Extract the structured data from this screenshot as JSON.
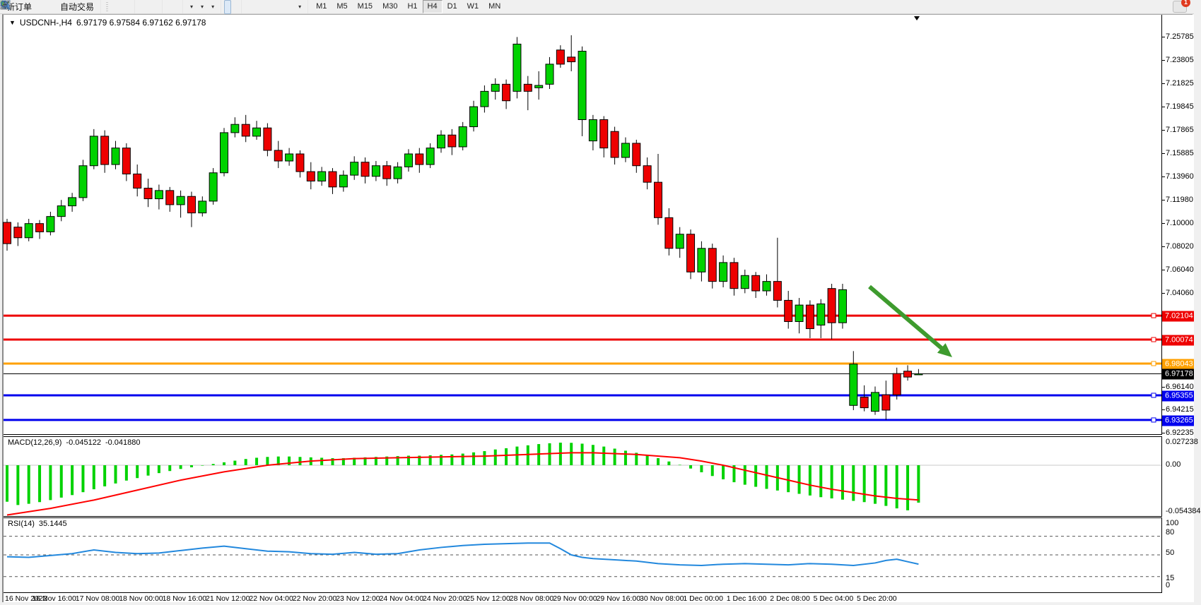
{
  "toolbar": {
    "new_order_label": "新订单",
    "auto_trading_label": "自动交易",
    "timeframes": [
      "M1",
      "M5",
      "M15",
      "M30",
      "H1",
      "H4",
      "D1",
      "W1",
      "MN"
    ],
    "active_timeframe": "H4",
    "chat_badge_count": "1"
  },
  "chart": {
    "symbol_title": "USDCNH-,H4",
    "ohlc_text": "6.97179 6.97584 6.97162 6.97178",
    "open": "6.97179",
    "high": "6.97584",
    "low": "6.97162",
    "close": "6.97178"
  },
  "macd_panel": {
    "label": "MACD(12,26,9)",
    "value_macd": "-0.045122",
    "value_signal": "-0.041880",
    "axis_labels": [
      "0.027238",
      "0.00",
      "-0.054384"
    ]
  },
  "rsi_panel": {
    "label": "RSI(14)",
    "value": "35.1445",
    "axis_labels": [
      "100",
      "80",
      "50",
      "15",
      "0"
    ]
  },
  "price_axis": {
    "plain_ticks": [
      {
        "label": "7.25785",
        "y": 31
      },
      {
        "label": "7.23805",
        "y": 64
      },
      {
        "label": "7.21825",
        "y": 97
      },
      {
        "label": "7.19845",
        "y": 130
      },
      {
        "label": "7.17865",
        "y": 163
      },
      {
        "label": "7.15885",
        "y": 196
      },
      {
        "label": "7.13960",
        "y": 229
      },
      {
        "label": "7.11980",
        "y": 262
      },
      {
        "label": "7.10000",
        "y": 295
      },
      {
        "label": "7.08020",
        "y": 328
      },
      {
        "label": "7.06040",
        "y": 361
      },
      {
        "label": "7.04060",
        "y": 394
      },
      {
        "label": "6.96140",
        "y": 527
      },
      {
        "label": "6.94215",
        "y": 559
      },
      {
        "label": "6.92235",
        "y": 592
      }
    ]
  },
  "time_axis": [
    "16 Nov 2022",
    "16 Nov 16:00",
    "17 Nov 08:00",
    "18 Nov 00:00",
    "18 Nov 16:00",
    "21 Nov 12:00",
    "22 Nov 04:00",
    "22 Nov 20:00",
    "23 Nov 12:00",
    "24 Nov 04:00",
    "24 Nov 20:00",
    "25 Nov 12:00",
    "28 Nov 08:00",
    "29 Nov 00:00",
    "29 Nov 16:00",
    "30 Nov 08:00",
    "1 Dec 00:00",
    "1 Dec 16:00",
    "2 Dec 08:00",
    "5 Dec 04:00",
    "5 Dec 20:00"
  ],
  "chart_data": {
    "type": "candlestick",
    "symbol": "USDCNH",
    "timeframe": "H4",
    "ylim": [
      6.9165,
      7.2625
    ],
    "colors": {
      "bull": "#00d200",
      "bear": "#ee0000",
      "outline": "#000000",
      "level_red": "#ee0000",
      "level_orange": "#ffa000",
      "level_blue": "#0000ee",
      "current_price_line": "#000000",
      "macd_hist": "#00d200",
      "macd_signal": "#ff0000",
      "rsi_line": "#2288dd",
      "arrow": "#3e9b2e"
    },
    "levels": [
      {
        "price": 7.02104,
        "color": "#ee0000",
        "width": 3
      },
      {
        "price": 7.00074,
        "color": "#ee0000",
        "width": 3
      },
      {
        "price": 6.98043,
        "color": "#ffa000",
        "width": 3
      },
      {
        "price": 6.97178,
        "color": "#000000",
        "width": 1,
        "current": true
      },
      {
        "price": 6.95355,
        "color": "#0000ee",
        "width": 3
      },
      {
        "price": 6.93265,
        "color": "#0000ee",
        "width": 3
      }
    ],
    "candles_ohlc": [
      [
        7.1,
        7.103,
        7.076,
        7.082
      ],
      [
        7.096,
        7.1,
        7.08,
        7.087
      ],
      [
        7.087,
        7.103,
        7.084,
        7.099
      ],
      [
        7.099,
        7.102,
        7.086,
        7.092
      ],
      [
        7.092,
        7.109,
        7.089,
        7.105
      ],
      [
        7.105,
        7.119,
        7.101,
        7.114
      ],
      [
        7.114,
        7.125,
        7.109,
        7.121
      ],
      [
        7.121,
        7.153,
        7.118,
        7.148
      ],
      [
        7.148,
        7.179,
        7.145,
        7.173
      ],
      [
        7.173,
        7.178,
        7.142,
        7.149
      ],
      [
        7.149,
        7.169,
        7.145,
        7.163
      ],
      [
        7.163,
        7.167,
        7.135,
        7.141
      ],
      [
        7.141,
        7.149,
        7.122,
        7.129
      ],
      [
        7.129,
        7.137,
        7.113,
        7.12
      ],
      [
        7.12,
        7.132,
        7.111,
        7.127
      ],
      [
        7.127,
        7.13,
        7.109,
        7.115
      ],
      [
        7.115,
        7.127,
        7.104,
        7.122
      ],
      [
        7.122,
        7.126,
        7.096,
        7.108
      ],
      [
        7.108,
        7.122,
        7.105,
        7.118
      ],
      [
        7.118,
        7.146,
        7.115,
        7.142
      ],
      [
        7.142,
        7.18,
        7.139,
        7.176
      ],
      [
        7.176,
        7.189,
        7.172,
        7.183
      ],
      [
        7.183,
        7.191,
        7.168,
        7.173
      ],
      [
        7.173,
        7.186,
        7.17,
        7.18
      ],
      [
        7.18,
        7.184,
        7.156,
        7.161
      ],
      [
        7.161,
        7.169,
        7.146,
        7.152
      ],
      [
        7.152,
        7.163,
        7.148,
        7.158
      ],
      [
        7.158,
        7.161,
        7.138,
        7.143
      ],
      [
        7.143,
        7.151,
        7.128,
        7.135
      ],
      [
        7.135,
        7.147,
        7.131,
        7.143
      ],
      [
        7.143,
        7.146,
        7.124,
        7.13
      ],
      [
        7.13,
        7.144,
        7.126,
        7.14
      ],
      [
        7.14,
        7.156,
        7.136,
        7.151
      ],
      [
        7.151,
        7.155,
        7.133,
        7.139
      ],
      [
        7.139,
        7.152,
        7.135,
        7.148
      ],
      [
        7.148,
        7.152,
        7.131,
        7.137
      ],
      [
        7.137,
        7.151,
        7.133,
        7.147
      ],
      [
        7.147,
        7.162,
        7.143,
        7.158
      ],
      [
        7.158,
        7.163,
        7.142,
        7.149
      ],
      [
        7.149,
        7.167,
        7.146,
        7.163
      ],
      [
        7.163,
        7.178,
        7.159,
        7.174
      ],
      [
        7.174,
        7.179,
        7.157,
        7.164
      ],
      [
        7.164,
        7.185,
        7.161,
        7.181
      ],
      [
        7.181,
        7.203,
        7.177,
        7.198
      ],
      [
        7.198,
        7.216,
        7.193,
        7.211
      ],
      [
        7.211,
        7.222,
        7.204,
        7.217
      ],
      [
        7.217,
        7.221,
        7.196,
        7.203
      ],
      [
        7.211,
        7.257,
        7.205,
        7.251
      ],
      [
        7.217,
        7.224,
        7.195,
        7.211
      ],
      [
        7.214,
        7.228,
        7.204,
        7.216
      ],
      [
        7.217,
        7.24,
        7.213,
        7.234
      ],
      [
        7.246,
        7.25,
        7.231,
        7.234
      ],
      [
        7.24,
        7.2585,
        7.228,
        7.236
      ],
      [
        7.187,
        7.249,
        7.173,
        7.245
      ],
      [
        7.169,
        7.191,
        7.161,
        7.187
      ],
      [
        7.187,
        7.19,
        7.155,
        7.163
      ],
      [
        7.177,
        7.181,
        7.149,
        7.155
      ],
      [
        7.155,
        7.172,
        7.151,
        7.167
      ],
      [
        7.167,
        7.17,
        7.142,
        7.148
      ],
      [
        7.148,
        7.155,
        7.128,
        7.134
      ],
      [
        7.134,
        7.158,
        7.098,
        7.104
      ],
      [
        7.104,
        7.112,
        7.072,
        7.078
      ],
      [
        7.078,
        7.096,
        7.07,
        7.09
      ],
      [
        7.09,
        7.094,
        7.052,
        7.058
      ],
      [
        7.058,
        7.084,
        7.05,
        7.078
      ],
      [
        7.078,
        7.082,
        7.044,
        7.05
      ],
      [
        7.05,
        7.072,
        7.045,
        7.066
      ],
      [
        7.066,
        7.07,
        7.038,
        7.044
      ],
      [
        7.044,
        7.06,
        7.04,
        7.055
      ],
      [
        7.055,
        7.058,
        7.036,
        7.042
      ],
      [
        7.042,
        7.056,
        7.038,
        7.05
      ],
      [
        7.05,
        7.087,
        7.028,
        7.034
      ],
      [
        7.034,
        7.042,
        7.01,
        7.016
      ],
      [
        7.016,
        7.036,
        7.006,
        7.03
      ],
      [
        7.03,
        7.034,
        7.002,
        7.01
      ],
      [
        7.013,
        7.035,
        7.002,
        7.031
      ],
      [
        7.044,
        7.048,
        7.001,
        7.015
      ],
      [
        7.015,
        7.048,
        7.01,
        7.043
      ],
      [
        6.945,
        6.991,
        6.941,
        6.98
      ],
      [
        6.952,
        6.962,
        6.94,
        6.943
      ],
      [
        6.94,
        6.961,
        6.937,
        6.956
      ],
      [
        6.954,
        6.966,
        6.9327,
        6.941
      ],
      [
        6.972,
        6.977,
        6.95,
        6.954
      ],
      [
        6.974,
        6.979,
        6.966,
        6.969
      ],
      [
        6.9718,
        6.9758,
        6.9716,
        6.9718
      ]
    ],
    "macd": {
      "params": "12,26,9",
      "current_macd": -0.045122,
      "current_signal": -0.04188,
      "axis_max": 0.027238,
      "axis_min": -0.054384,
      "histogram": [
        -0.044,
        -0.048,
        -0.0465,
        -0.0445,
        -0.042,
        -0.039,
        -0.036,
        -0.0325,
        -0.029,
        -0.0255,
        -0.022,
        -0.0185,
        -0.0155,
        -0.0125,
        -0.0095,
        -0.007,
        -0.0045,
        -0.0025,
        -0.0005,
        0.0015,
        0.0035,
        0.0055,
        0.0075,
        0.009,
        0.01,
        0.0105,
        0.0105,
        0.01,
        0.0095,
        0.009,
        0.0085,
        0.0085,
        0.009,
        0.0095,
        0.01,
        0.0105,
        0.011,
        0.0115,
        0.0115,
        0.012,
        0.0125,
        0.013,
        0.014,
        0.0155,
        0.017,
        0.019,
        0.0205,
        0.0225,
        0.024,
        0.0255,
        0.0265,
        0.0272,
        0.027,
        0.026,
        0.0245,
        0.0225,
        0.02,
        0.0175,
        0.015,
        0.012,
        0.0085,
        0.0045,
        0.0005,
        -0.004,
        -0.0085,
        -0.013,
        -0.017,
        -0.0205,
        -0.0235,
        -0.026,
        -0.0285,
        -0.0305,
        -0.0325,
        -0.0345,
        -0.0365,
        -0.0385,
        -0.04,
        -0.0415,
        -0.043,
        -0.0445,
        -0.0465,
        -0.049,
        -0.052,
        -0.0544,
        -0.0451
      ],
      "signal_waypoints": [
        [
          0,
          -0.06
        ],
        [
          4,
          -0.052
        ],
        [
          8,
          -0.042
        ],
        [
          12,
          -0.03
        ],
        [
          16,
          -0.018
        ],
        [
          20,
          -0.008
        ],
        [
          24,
          0.0
        ],
        [
          28,
          0.005
        ],
        [
          32,
          0.008
        ],
        [
          36,
          0.009
        ],
        [
          40,
          0.01
        ],
        [
          44,
          0.011
        ],
        [
          48,
          0.013
        ],
        [
          52,
          0.015
        ],
        [
          54,
          0.015
        ],
        [
          58,
          0.013
        ],
        [
          62,
          0.009
        ],
        [
          64,
          0.005
        ],
        [
          66,
          0.0
        ],
        [
          68,
          -0.006
        ],
        [
          70,
          -0.012
        ],
        [
          72,
          -0.018
        ],
        [
          74,
          -0.024
        ],
        [
          76,
          -0.029
        ],
        [
          78,
          -0.033
        ],
        [
          80,
          -0.037
        ],
        [
          82,
          -0.04
        ],
        [
          84,
          -0.0419
        ]
      ]
    },
    "rsi": {
      "period": 14,
      "current": 35.1445,
      "levels_dashed": [
        80,
        50,
        15
      ],
      "waypoints": [
        [
          0,
          47
        ],
        [
          2,
          46
        ],
        [
          4,
          49
        ],
        [
          6,
          52
        ],
        [
          8,
          58
        ],
        [
          10,
          54
        ],
        [
          12,
          52
        ],
        [
          14,
          53
        ],
        [
          16,
          57
        ],
        [
          18,
          61
        ],
        [
          20,
          64
        ],
        [
          22,
          60
        ],
        [
          24,
          56
        ],
        [
          26,
          55
        ],
        [
          28,
          52
        ],
        [
          30,
          51
        ],
        [
          32,
          54
        ],
        [
          34,
          51
        ],
        [
          36,
          52
        ],
        [
          38,
          58
        ],
        [
          40,
          62
        ],
        [
          42,
          65
        ],
        [
          44,
          67
        ],
        [
          46,
          68
        ],
        [
          48,
          69
        ],
        [
          50,
          69
        ],
        [
          51,
          60
        ],
        [
          52,
          50
        ],
        [
          53,
          46
        ],
        [
          54,
          44
        ],
        [
          56,
          42
        ],
        [
          58,
          40
        ],
        [
          60,
          36
        ],
        [
          62,
          34
        ],
        [
          64,
          33
        ],
        [
          66,
          35
        ],
        [
          68,
          36
        ],
        [
          70,
          35
        ],
        [
          72,
          34
        ],
        [
          74,
          36
        ],
        [
          76,
          35
        ],
        [
          78,
          33
        ],
        [
          80,
          37
        ],
        [
          81,
          41
        ],
        [
          82,
          43
        ],
        [
          83,
          39
        ],
        [
          84,
          35.1
        ]
      ]
    },
    "annotation_arrow": {
      "x1": 1225,
      "y1": 385,
      "x2": 1342,
      "y2": 485,
      "color": "#3e9b2e"
    }
  }
}
